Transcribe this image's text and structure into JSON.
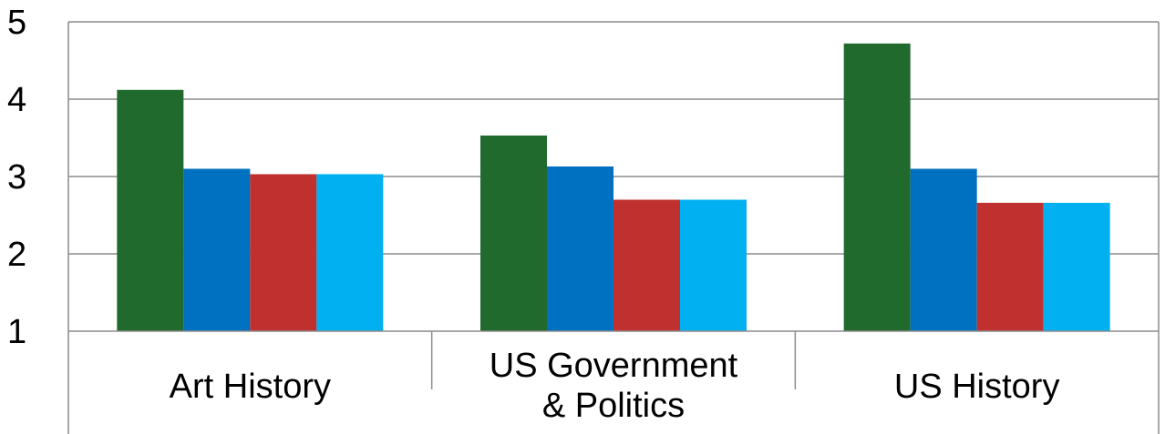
{
  "chart_data": {
    "type": "bar",
    "title": "",
    "xlabel": "",
    "ylabel": "",
    "ylim": [
      1,
      5
    ],
    "yticks": [
      "1",
      "2",
      "3",
      "4",
      "5"
    ],
    "categories": [
      [
        "Art History"
      ],
      [
        "US Government",
        "& Politics"
      ],
      [
        "US History"
      ]
    ],
    "grid": true,
    "legend": "none",
    "series": [
      {
        "color": "#216a2d",
        "values": [
          4.12,
          3.53,
          4.72
        ]
      },
      {
        "color": "#0070c0",
        "values": [
          3.1,
          3.13,
          3.1
        ]
      },
      {
        "color": "#c0302f",
        "values": [
          3.03,
          2.7,
          2.66
        ]
      },
      {
        "color": "#00b0f0",
        "values": [
          3.03,
          2.7,
          2.66
        ]
      }
    ]
  }
}
